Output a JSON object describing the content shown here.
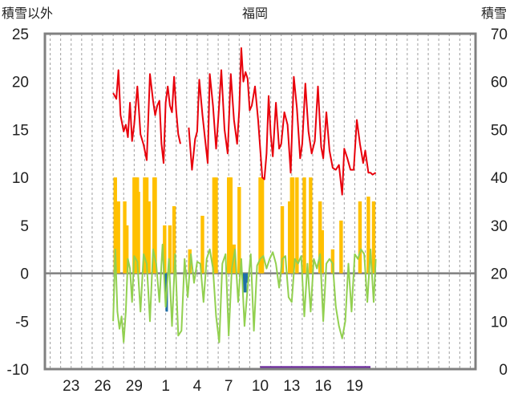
{
  "chart_data": {
    "type": "line",
    "title": "福岡",
    "ylabel_left": "積雪以外",
    "ylabel_right": "積雪",
    "ylim_left": [
      -10,
      25
    ],
    "ylim_right": [
      0,
      70
    ],
    "yticks_left": [
      "25",
      "20",
      "15",
      "10",
      "5",
      "0",
      "-5",
      "-10"
    ],
    "yticks_right": [
      "70",
      "60",
      "50",
      "40",
      "30",
      "20",
      "10",
      "0"
    ],
    "x_range": [
      20.5,
      61.5
    ],
    "x_ticks": [
      {
        "x": 23,
        "label": "23"
      },
      {
        "x": 26,
        "label": "26"
      },
      {
        "x": 29,
        "label": "29"
      },
      {
        "x": 32,
        "label": "1"
      },
      {
        "x": 35,
        "label": "4"
      },
      {
        "x": 38,
        "label": "7"
      },
      {
        "x": 41,
        "label": "10"
      },
      {
        "x": 44,
        "label": "13"
      },
      {
        "x": 47,
        "label": "16"
      },
      {
        "x": 50,
        "label": "19"
      }
    ],
    "grid": "vertical dashed daily lines",
    "colors": {
      "temperature": "#e8000b",
      "dewpoint_or_min": "#92d050",
      "precip": "#ffc000",
      "snowfall": "#1f6fa8",
      "snow_depth": "#7030a0",
      "frame": "#808080",
      "zero_line": "#7f7f7f"
    },
    "series": [
      {
        "key": "temperature",
        "axis": "left",
        "x": [
          27.0,
          27.3,
          27.5,
          27.7,
          28.0,
          28.2,
          28.4,
          28.6,
          28.8,
          29.0,
          29.3,
          29.6,
          29.9,
          30.2,
          30.5,
          30.8,
          31.0,
          31.2,
          31.4,
          31.6,
          31.8,
          32.0,
          32.2,
          32.4,
          32.6,
          32.8,
          33.0,
          33.2,
          33.4
        ],
        "y": [
          18.8,
          18.2,
          21.2,
          16.5,
          14.8,
          15.5,
          14.2,
          17.8,
          13.8,
          15.5,
          19.5,
          14.5,
          13.4,
          11.8,
          20.8,
          18.0,
          16.5,
          17.5,
          18.0,
          13.5,
          11.5,
          17.8,
          19.5,
          17.5,
          16.8,
          20.5,
          17.0,
          14.5,
          13.5
        ]
      },
      {
        "key": "temperature_b",
        "axis": "left",
        "x": [
          34.2,
          34.5,
          34.8,
          35.0,
          35.2,
          35.5,
          35.8,
          36.0,
          36.2,
          36.5,
          36.8,
          37.0,
          37.3,
          37.6,
          37.9,
          38.2,
          38.5,
          38.8,
          39.0,
          39.2,
          39.4,
          39.6,
          39.8,
          40.0,
          40.2,
          40.5,
          40.8,
          41.0,
          41.2,
          41.4,
          41.6,
          41.8,
          42.0,
          42.2,
          42.5,
          42.8,
          43.0,
          43.3,
          43.6,
          43.9,
          44.2,
          44.5,
          44.8,
          45.0,
          45.3,
          45.6,
          45.9,
          46.2,
          46.5,
          46.8,
          47.0,
          47.3,
          47.6,
          47.9,
          48.2,
          48.5,
          48.8,
          49.0,
          49.3,
          49.6,
          49.9,
          50.2,
          50.5,
          50.8,
          51.0,
          51.3,
          51.5,
          51.7,
          52.0
        ],
        "y": [
          15.2,
          10.8,
          14.0,
          14.8,
          20.2,
          16.5,
          13.5,
          11.5,
          20.8,
          17.5,
          13.0,
          16.0,
          21.2,
          15.0,
          12.5,
          20.8,
          16.0,
          13.5,
          17.0,
          23.5,
          20.0,
          21.0,
          20.3,
          17.0,
          17.5,
          19.5,
          16.0,
          13.0,
          10.0,
          9.8,
          12.5,
          18.5,
          14.5,
          12.2,
          17.8,
          13.0,
          13.5,
          16.8,
          15.5,
          10.5,
          20.5,
          17.2,
          12.0,
          13.5,
          19.8,
          14.8,
          12.5,
          13.8,
          19.5,
          13.2,
          12.0,
          16.8,
          12.8,
          11.0,
          10.8,
          11.3,
          8.2,
          13.0,
          12.0,
          10.8,
          10.8,
          16.0,
          13.5,
          11.5,
          12.8,
          10.5,
          10.5,
          10.3,
          10.5
        ]
      }
    ],
    "series_green": {
      "key": "dewpoint_or_min",
      "axis": "left",
      "x": [
        27.0,
        27.2,
        27.4,
        27.6,
        27.8,
        28.0,
        28.2,
        28.4,
        28.6,
        28.8,
        29.0,
        29.3,
        29.6,
        29.9,
        30.2,
        30.5,
        30.8,
        31.1,
        31.4,
        31.7,
        32.0,
        32.3,
        32.6,
        32.9,
        33.2,
        33.5,
        33.8,
        34.1,
        34.4,
        34.7,
        35.0,
        35.3,
        35.6,
        35.9,
        36.2,
        36.5,
        36.8,
        37.1,
        37.4,
        37.7,
        38.0,
        38.3,
        38.6,
        38.9,
        39.2,
        39.5,
        39.8,
        40.1,
        40.4,
        40.7,
        41.0,
        41.3,
        41.6,
        41.9,
        42.2,
        42.5,
        42.8,
        43.1,
        43.4,
        43.7,
        44.0,
        44.3,
        44.6,
        44.9,
        45.2,
        45.5,
        45.8,
        46.1,
        46.4,
        46.7,
        47.0,
        47.3,
        47.6,
        47.9,
        48.2,
        48.5,
        48.8,
        49.1,
        49.4,
        49.7,
        50.0,
        50.3,
        50.6,
        50.9,
        51.2,
        51.5,
        51.8,
        52.0
      ],
      "y": [
        -5.0,
        2.5,
        -4.0,
        -5.8,
        -4.5,
        -7.2,
        -4.0,
        1.5,
        0.5,
        -3.0,
        1.8,
        1.2,
        -4.0,
        2.0,
        1.0,
        -5.0,
        2.5,
        1.0,
        -3.0,
        3.0,
        -3.5,
        1.5,
        -5.5,
        2.0,
        -6.5,
        -6.0,
        1.5,
        -2.5,
        2.0,
        -1.0,
        1.2,
        1.0,
        -3.0,
        1.5,
        2.5,
        0.5,
        -4.5,
        -7.2,
        1.0,
        2.0,
        -6.5,
        0.5,
        2.5,
        -3.0,
        1.5,
        -5.5,
        -1.5,
        2.0,
        -6.0,
        0.8,
        1.5,
        1.8,
        0.5,
        1.5,
        2.2,
        1.0,
        -1.5,
        1.5,
        1.8,
        -2.5,
        -3.0,
        1.5,
        1.0,
        1.8,
        -4.5,
        1.0,
        -4.0,
        1.5,
        0.5,
        2.0,
        -5.0,
        1.0,
        1.5,
        1.0,
        -3.5,
        -5.5,
        -6.8,
        -5.0,
        1.0,
        -4.0,
        2.0,
        1.5,
        2.5,
        2.0,
        -3.0,
        2.5,
        -3.0,
        1.5
      ]
    },
    "bars_precip": {
      "key": "precip",
      "axis": "left",
      "x": [
        27.2,
        27.5,
        28.1,
        28.3,
        29.0,
        29.1,
        29.2,
        29.3,
        29.4,
        30.0,
        30.2,
        30.4,
        30.9,
        31.0,
        31.9,
        32.4,
        32.8,
        34.3,
        35.5,
        36.6,
        36.8,
        38.0,
        38.1,
        38.2,
        38.5,
        39.0,
        41.0,
        41.1,
        41.2,
        43.1,
        43.8,
        44.0,
        44.1,
        44.5,
        45.2,
        45.8,
        46.7,
        46.9,
        47.9,
        48.7,
        50.5,
        51.3,
        51.8
      ],
      "y": [
        10.0,
        7.5,
        7.5,
        5.0,
        10.0,
        10.0,
        10.0,
        10.0,
        8.5,
        10.0,
        10.0,
        7.5,
        10.0,
        10.0,
        5.0,
        5.0,
        7.0,
        2.5,
        6.0,
        10.0,
        10.0,
        10.0,
        10.0,
        10.0,
        3.0,
        9.0,
        10.0,
        10.0,
        10.0,
        7.0,
        7.5,
        10.0,
        10.0,
        10.0,
        10.0,
        10.0,
        7.5,
        4.5,
        2.5,
        5.5,
        7.5,
        8.0,
        7.5
      ]
    },
    "bars_snow": {
      "key": "snowfall",
      "axis": "left",
      "x": [
        32.0,
        32.1,
        39.4,
        39.5,
        39.6,
        39.7
      ],
      "y": [
        -2.0,
        -4.0,
        -2.0,
        -1.5,
        -2.0,
        -1.0
      ]
    },
    "snow_depth": {
      "key": "snow_depth",
      "axis": "right",
      "x": [
        41.0,
        51.5
      ],
      "y": [
        0.3,
        0.3
      ]
    }
  }
}
